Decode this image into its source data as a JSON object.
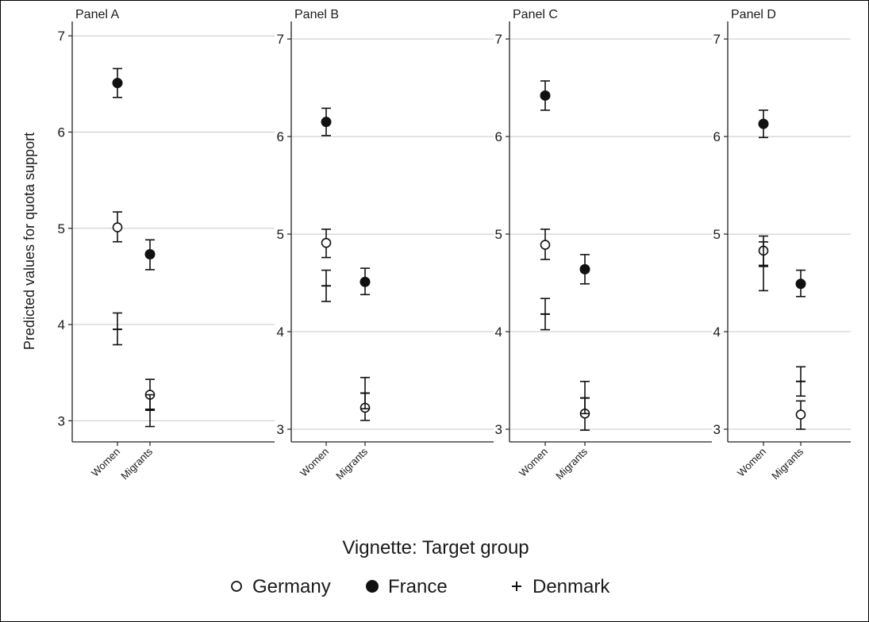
{
  "chart_data": {
    "type": "scatter",
    "ylabel": "Predicted values for quota support",
    "xlabel": "Vignette: Target group",
    "categories": [
      "Women",
      "Migrants"
    ],
    "grid": true,
    "legend_position": "bottom",
    "legend": [
      {
        "name": "Germany",
        "marker": "hollow-circle"
      },
      {
        "name": "France",
        "marker": "filled-circle"
      },
      {
        "name": "Denmark",
        "marker": "plus"
      }
    ],
    "panels": [
      {
        "title": "Panel A",
        "ylim": [
          2.78,
          7.15
        ],
        "yticks": [
          3,
          4,
          5,
          6,
          7
        ],
        "series": [
          {
            "name": "Germany",
            "points": [
              {
                "category": "Women",
                "estimate": 5.01,
                "ci": [
                  4.86,
                  5.17
                ]
              },
              {
                "category": "Migrants",
                "estimate": 3.27,
                "ci": [
                  3.12,
                  3.43
                ]
              }
            ]
          },
          {
            "name": "France",
            "points": [
              {
                "category": "Women",
                "estimate": 6.51,
                "ci": [
                  6.36,
                  6.66
                ]
              },
              {
                "category": "Migrants",
                "estimate": 4.73,
                "ci": [
                  4.57,
                  4.88
                ]
              }
            ]
          },
          {
            "name": "Denmark",
            "points": [
              {
                "category": "Women",
                "estimate": 3.95,
                "ci": [
                  3.79,
                  4.12
                ]
              },
              {
                "category": "Migrants",
                "estimate": 3.11,
                "ci": [
                  2.94,
                  3.27
                ]
              }
            ]
          }
        ]
      },
      {
        "title": "Panel B",
        "ylim": [
          2.87,
          7.18
        ],
        "yticks": [
          3,
          4,
          5,
          6,
          7
        ],
        "series": [
          {
            "name": "Germany",
            "points": [
              {
                "category": "Women",
                "estimate": 4.91,
                "ci": [
                  4.76,
                  5.05
                ]
              },
              {
                "category": "Migrants",
                "estimate": 3.22,
                "ci": [
                  3.09,
                  3.37
                ]
              }
            ]
          },
          {
            "name": "France",
            "points": [
              {
                "category": "Women",
                "estimate": 6.15,
                "ci": [
                  6.01,
                  6.29
                ]
              },
              {
                "category": "Migrants",
                "estimate": 4.51,
                "ci": [
                  4.38,
                  4.65
                ]
              }
            ]
          },
          {
            "name": "Denmark",
            "points": [
              {
                "category": "Women",
                "estimate": 4.47,
                "ci": [
                  4.31,
                  4.63
                ]
              },
              {
                "category": "Migrants",
                "estimate": 3.37,
                "ci": [
                  3.21,
                  3.53
                ]
              }
            ]
          }
        ]
      },
      {
        "title": "Panel C",
        "ylim": [
          2.87,
          7.18
        ],
        "yticks": [
          3,
          4,
          5,
          6,
          7
        ],
        "series": [
          {
            "name": "Germany",
            "points": [
              {
                "category": "Women",
                "estimate": 4.89,
                "ci": [
                  4.74,
                  5.05
                ]
              },
              {
                "category": "Migrants",
                "estimate": 3.16,
                "ci": [
                  2.99,
                  3.32
                ]
              }
            ]
          },
          {
            "name": "France",
            "points": [
              {
                "category": "Women",
                "estimate": 6.42,
                "ci": [
                  6.27,
                  6.57
                ]
              },
              {
                "category": "Migrants",
                "estimate": 4.64,
                "ci": [
                  4.49,
                  4.79
                ]
              }
            ]
          },
          {
            "name": "Denmark",
            "points": [
              {
                "category": "Women",
                "estimate": 4.18,
                "ci": [
                  4.02,
                  4.34
                ]
              },
              {
                "category": "Migrants",
                "estimate": 3.32,
                "ci": [
                  3.16,
                  3.49
                ]
              }
            ]
          }
        ]
      },
      {
        "title": "Panel D",
        "ylim": [
          2.87,
          7.18
        ],
        "yticks": [
          3,
          4,
          5,
          6,
          7
        ],
        "series": [
          {
            "name": "Germany",
            "points": [
              {
                "category": "Women",
                "estimate": 4.83,
                "ci": [
                  4.68,
                  4.98
                ]
              },
              {
                "category": "Migrants",
                "estimate": 3.15,
                "ci": [
                  3.0,
                  3.29
                ]
              }
            ]
          },
          {
            "name": "France",
            "points": [
              {
                "category": "Women",
                "estimate": 6.13,
                "ci": [
                  5.99,
                  6.27
                ]
              },
              {
                "category": "Migrants",
                "estimate": 4.49,
                "ci": [
                  4.36,
                  4.63
                ]
              }
            ]
          },
          {
            "name": "Denmark",
            "points": [
              {
                "category": "Women",
                "estimate": 4.67,
                "ci": [
                  4.42,
                  4.92
                ]
              },
              {
                "category": "Migrants",
                "estimate": 3.49,
                "ci": [
                  3.34,
                  3.64
                ]
              }
            ]
          }
        ]
      }
    ]
  }
}
